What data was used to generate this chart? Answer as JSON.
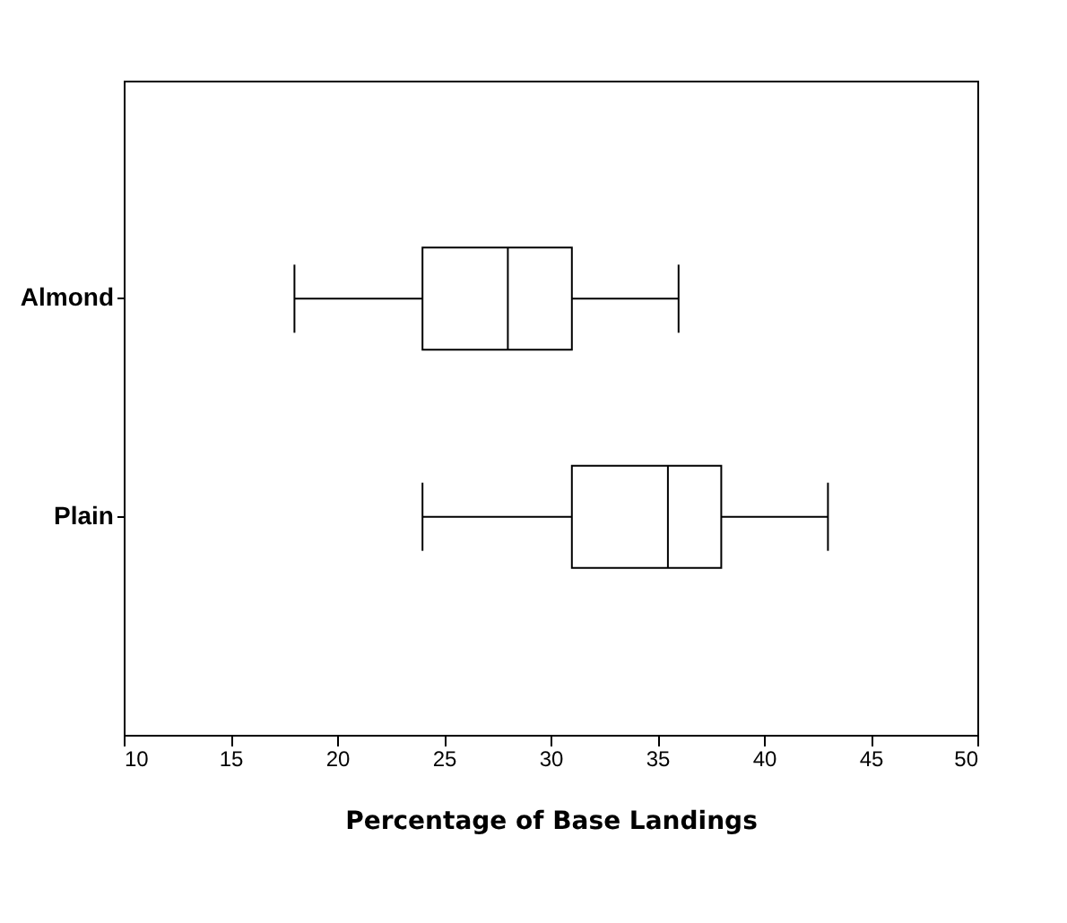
{
  "chart_data": {
    "type": "box",
    "orientation": "horizontal",
    "xlabel": "Percentage of Base Landings",
    "categories": [
      "Almond",
      "Plain"
    ],
    "boxes": [
      {
        "low": 18,
        "q1": 24,
        "median": 28,
        "q3": 31,
        "high": 36
      },
      {
        "low": 24,
        "q1": 31,
        "median": 35.5,
        "q3": 38,
        "high": 43
      }
    ],
    "xlim": [
      10,
      50
    ],
    "xticks": [
      10,
      15,
      20,
      25,
      30,
      35,
      40,
      45,
      50
    ],
    "grid": false
  }
}
